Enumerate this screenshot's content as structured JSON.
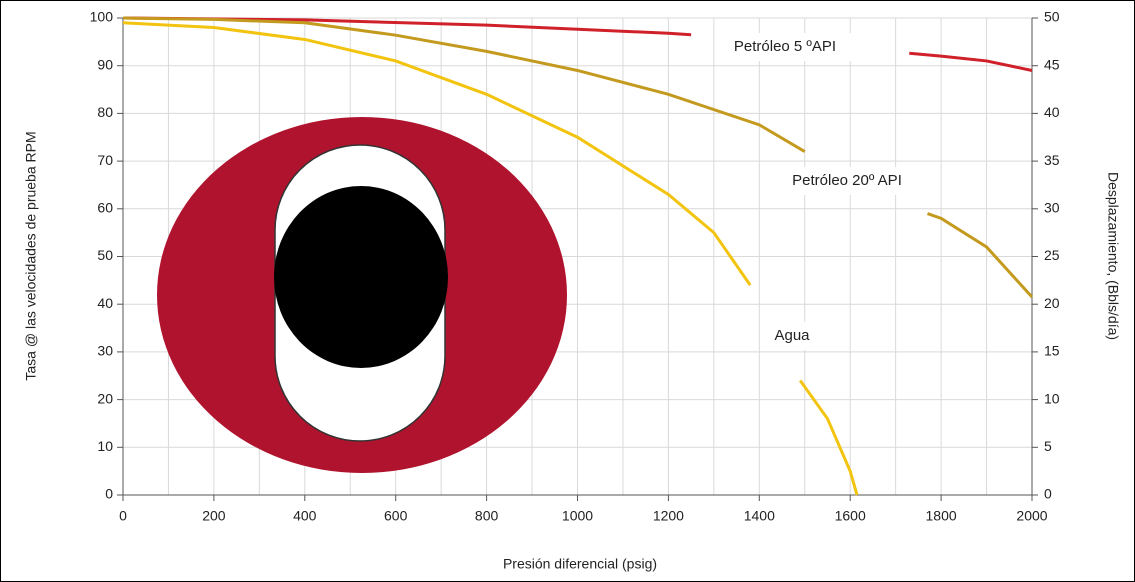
{
  "chart_data": {
    "type": "line",
    "x_label": "Presión diferencial (psig)",
    "y_label": "Tasa @ las velocidades de prueba RPM",
    "y2_label": "Desplazamiento, (Bbls/día)",
    "xlim": [
      0,
      2000
    ],
    "xticks": [
      0,
      200,
      400,
      600,
      800,
      1000,
      1200,
      1400,
      1600,
      1800,
      2000
    ],
    "x_minor_ticks": [
      100,
      300,
      500,
      700,
      900,
      1100,
      1300,
      1500,
      1700,
      1900
    ],
    "ylim": [
      0,
      100
    ],
    "yticks": [
      0,
      10,
      20,
      30,
      40,
      50,
      60,
      70,
      80,
      90,
      100
    ],
    "y2lim": [
      0,
      50
    ],
    "y2ticks": [
      0,
      5,
      10,
      15,
      20,
      25,
      30,
      35,
      40,
      45,
      50
    ],
    "grid": true,
    "series": [
      {
        "name": "Petróleo 5 ºAPI",
        "color": "#d0202a",
        "x": [
          0,
          400,
          800,
          1200,
          1250,
          1500,
          1730,
          1800,
          1900,
          2000
        ],
        "values": [
          100,
          99.6,
          98.5,
          96.8,
          96.5,
          null,
          92.6,
          92,
          91,
          89
        ]
      },
      {
        "name": "Petróleo 20º API",
        "color": "#c49a1e",
        "x": [
          0,
          200,
          400,
          600,
          800,
          1000,
          1200,
          1400,
          1500,
          1650,
          1770,
          1800,
          1900,
          2000
        ],
        "values": [
          100,
          99.7,
          99,
          96.4,
          93,
          89,
          84,
          77.6,
          72,
          null,
          59,
          58,
          52,
          41.5
        ]
      },
      {
        "name": "Agua",
        "color": "#f2c40f",
        "x": [
          0,
          200,
          400,
          600,
          800,
          1000,
          1200,
          1300,
          1380,
          1440,
          1490,
          1550,
          1600,
          1615
        ],
        "values": [
          99,
          98,
          95.5,
          91,
          84,
          75,
          63,
          55,
          44,
          null,
          24,
          16,
          5,
          0
        ]
      }
    ]
  }
}
